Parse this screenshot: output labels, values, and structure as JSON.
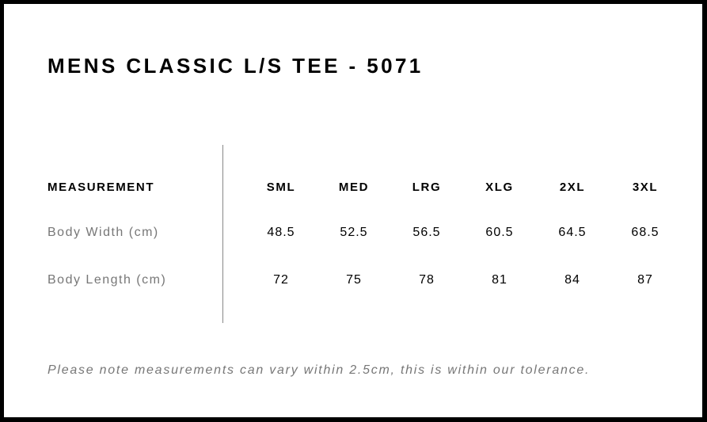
{
  "title": "MENS CLASSIC L/S TEE - 5071",
  "table": {
    "header_label": "MEASUREMENT",
    "sizes": [
      "SML",
      "MED",
      "LRG",
      "XLG",
      "2XL",
      "3XL"
    ],
    "rows": [
      {
        "label": "Body Width (cm)",
        "values": [
          "48.5",
          "52.5",
          "56.5",
          "60.5",
          "64.5",
          "68.5"
        ]
      },
      {
        "label": "Body Length (cm)",
        "values": [
          "72",
          "75",
          "78",
          "81",
          "84",
          "87"
        ]
      }
    ]
  },
  "note": "Please note measurements can vary within 2.5cm, this is within our tolerance."
}
